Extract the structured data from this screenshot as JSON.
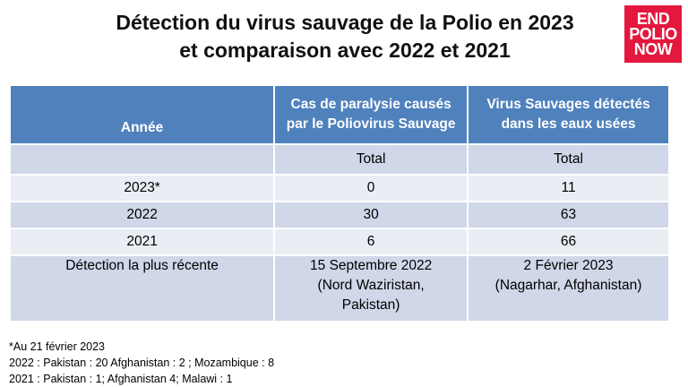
{
  "title": {
    "line1": "Détection du virus sauvage de la Polio en 2023",
    "line2": "et comparaison avec 2022 et 2021"
  },
  "logo": {
    "line1": "END",
    "line2": "POLIO",
    "line3": "NOW"
  },
  "table": {
    "headers": {
      "col1": "Année",
      "col2_line1": "Cas de paralysie causés",
      "col2_line2": "par le Poliovirus Sauvage",
      "col3_line1": "Virus  Sauvages détectés",
      "col3_line2": "dans les eaux usées"
    },
    "subheader": {
      "col1": "",
      "col2": "Total",
      "col3": "Total"
    },
    "rows": [
      {
        "year": "2023*",
        "cases": "0",
        "env": "11"
      },
      {
        "year": "2022",
        "cases": "30",
        "env": "63"
      },
      {
        "year": "2021",
        "cases": "6",
        "env": "66"
      }
    ],
    "recent": {
      "label": "Détection la plus récente",
      "cases_line1": "15 Septembre 2022",
      "cases_line2": "(Nord Waziristan,",
      "cases_line3": "Pakistan)",
      "env_line1": "2 Février 2023",
      "env_line2": "(Nagarhar, Afghanistan)"
    }
  },
  "notes": [
    "*Au 21 février 2023",
    "2022 : Pakistan : 20 Afghanistan : 2 ; Mozambique : 8",
    "2021 : Pakistan : 1; Afghanistan 4; Malawi : 1"
  ],
  "colors": {
    "header": "#4f81bd",
    "row_dark": "#cfd7e8",
    "row_light": "#e9edf4",
    "logo": "#e4173e"
  }
}
